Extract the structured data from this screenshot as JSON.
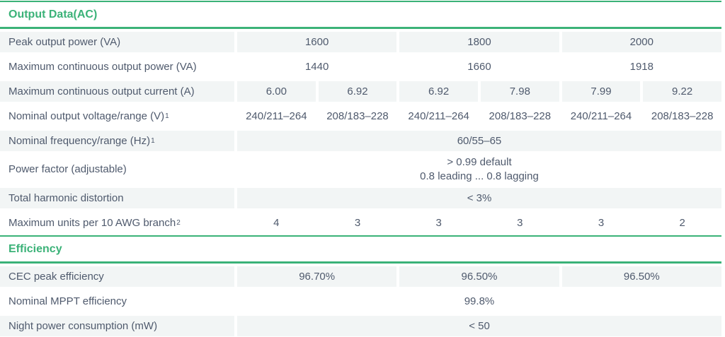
{
  "theme": {
    "accent_green": "#3bb278",
    "row_shade_gray": "#f2f5f5",
    "text_color": "#4f5a6d"
  },
  "table": {
    "sections": [
      {
        "title": "Output Data(AC)",
        "rows": [
          {
            "label": "Peak output power (VA)",
            "shaded": true,
            "values": [
              {
                "text": "1600",
                "span": 2
              },
              {
                "text": "1800",
                "span": 2
              },
              {
                "text": "2000",
                "span": 2
              }
            ]
          },
          {
            "label": "Maximum continuous output power (VA)",
            "shaded": false,
            "values": [
              {
                "text": "1440",
                "span": 2
              },
              {
                "text": "1660",
                "span": 2
              },
              {
                "text": "1918",
                "span": 2
              }
            ]
          },
          {
            "label": "Maximum continuous output current (A)",
            "shaded": true,
            "values": [
              {
                "text": "6.00",
                "span": 1
              },
              {
                "text": "6.92",
                "span": 1
              },
              {
                "text": "6.92",
                "span": 1
              },
              {
                "text": "7.98",
                "span": 1
              },
              {
                "text": "7.99",
                "span": 1
              },
              {
                "text": "9.22",
                "span": 1
              }
            ]
          },
          {
            "label": "Nominal output voltage/range (V)",
            "sup": "1",
            "shaded": false,
            "values": [
              {
                "text": "240/211–264",
                "span": 1
              },
              {
                "text": "208/183–228",
                "span": 1
              },
              {
                "text": "240/211–264",
                "span": 1
              },
              {
                "text": "208/183–228",
                "span": 1
              },
              {
                "text": "240/211–264",
                "span": 1
              },
              {
                "text": "208/183–228",
                "span": 1
              }
            ]
          },
          {
            "label": "Nominal frequency/range (Hz)",
            "sup": "1",
            "shaded": true,
            "values": [
              {
                "text": "60/55–65",
                "span": 6
              }
            ]
          },
          {
            "label": "Power factor (adjustable)",
            "shaded": false,
            "values": [
              {
                "text": "> 0.99 default\n0.8 leading ... 0.8 lagging",
                "span": 6
              }
            ]
          },
          {
            "label": "Total harmonic distortion",
            "shaded": true,
            "values": [
              {
                "text": "< 3%",
                "span": 6
              }
            ]
          },
          {
            "label": "Maximum units per 10 AWG branch",
            "sup": "2",
            "shaded": false,
            "values": [
              {
                "text": "4",
                "span": 1
              },
              {
                "text": "3",
                "span": 1
              },
              {
                "text": "3",
                "span": 1
              },
              {
                "text": "3",
                "span": 1
              },
              {
                "text": "3",
                "span": 1
              },
              {
                "text": "2",
                "span": 1
              }
            ]
          }
        ]
      },
      {
        "title": "Efficiency",
        "rows": [
          {
            "label": "CEC peak efficiency",
            "shaded": true,
            "values": [
              {
                "text": "96.70%",
                "span": 2
              },
              {
                "text": "96.50%",
                "span": 2
              },
              {
                "text": "96.50%",
                "span": 2
              }
            ]
          },
          {
            "label": "Nominal MPPT efficiency",
            "shaded": false,
            "values": [
              {
                "text": "99.8%",
                "span": 6
              }
            ]
          },
          {
            "label": "Night power consumption (mW)",
            "shaded": true,
            "values": [
              {
                "text": "< 50",
                "span": 6
              }
            ]
          }
        ]
      }
    ]
  }
}
